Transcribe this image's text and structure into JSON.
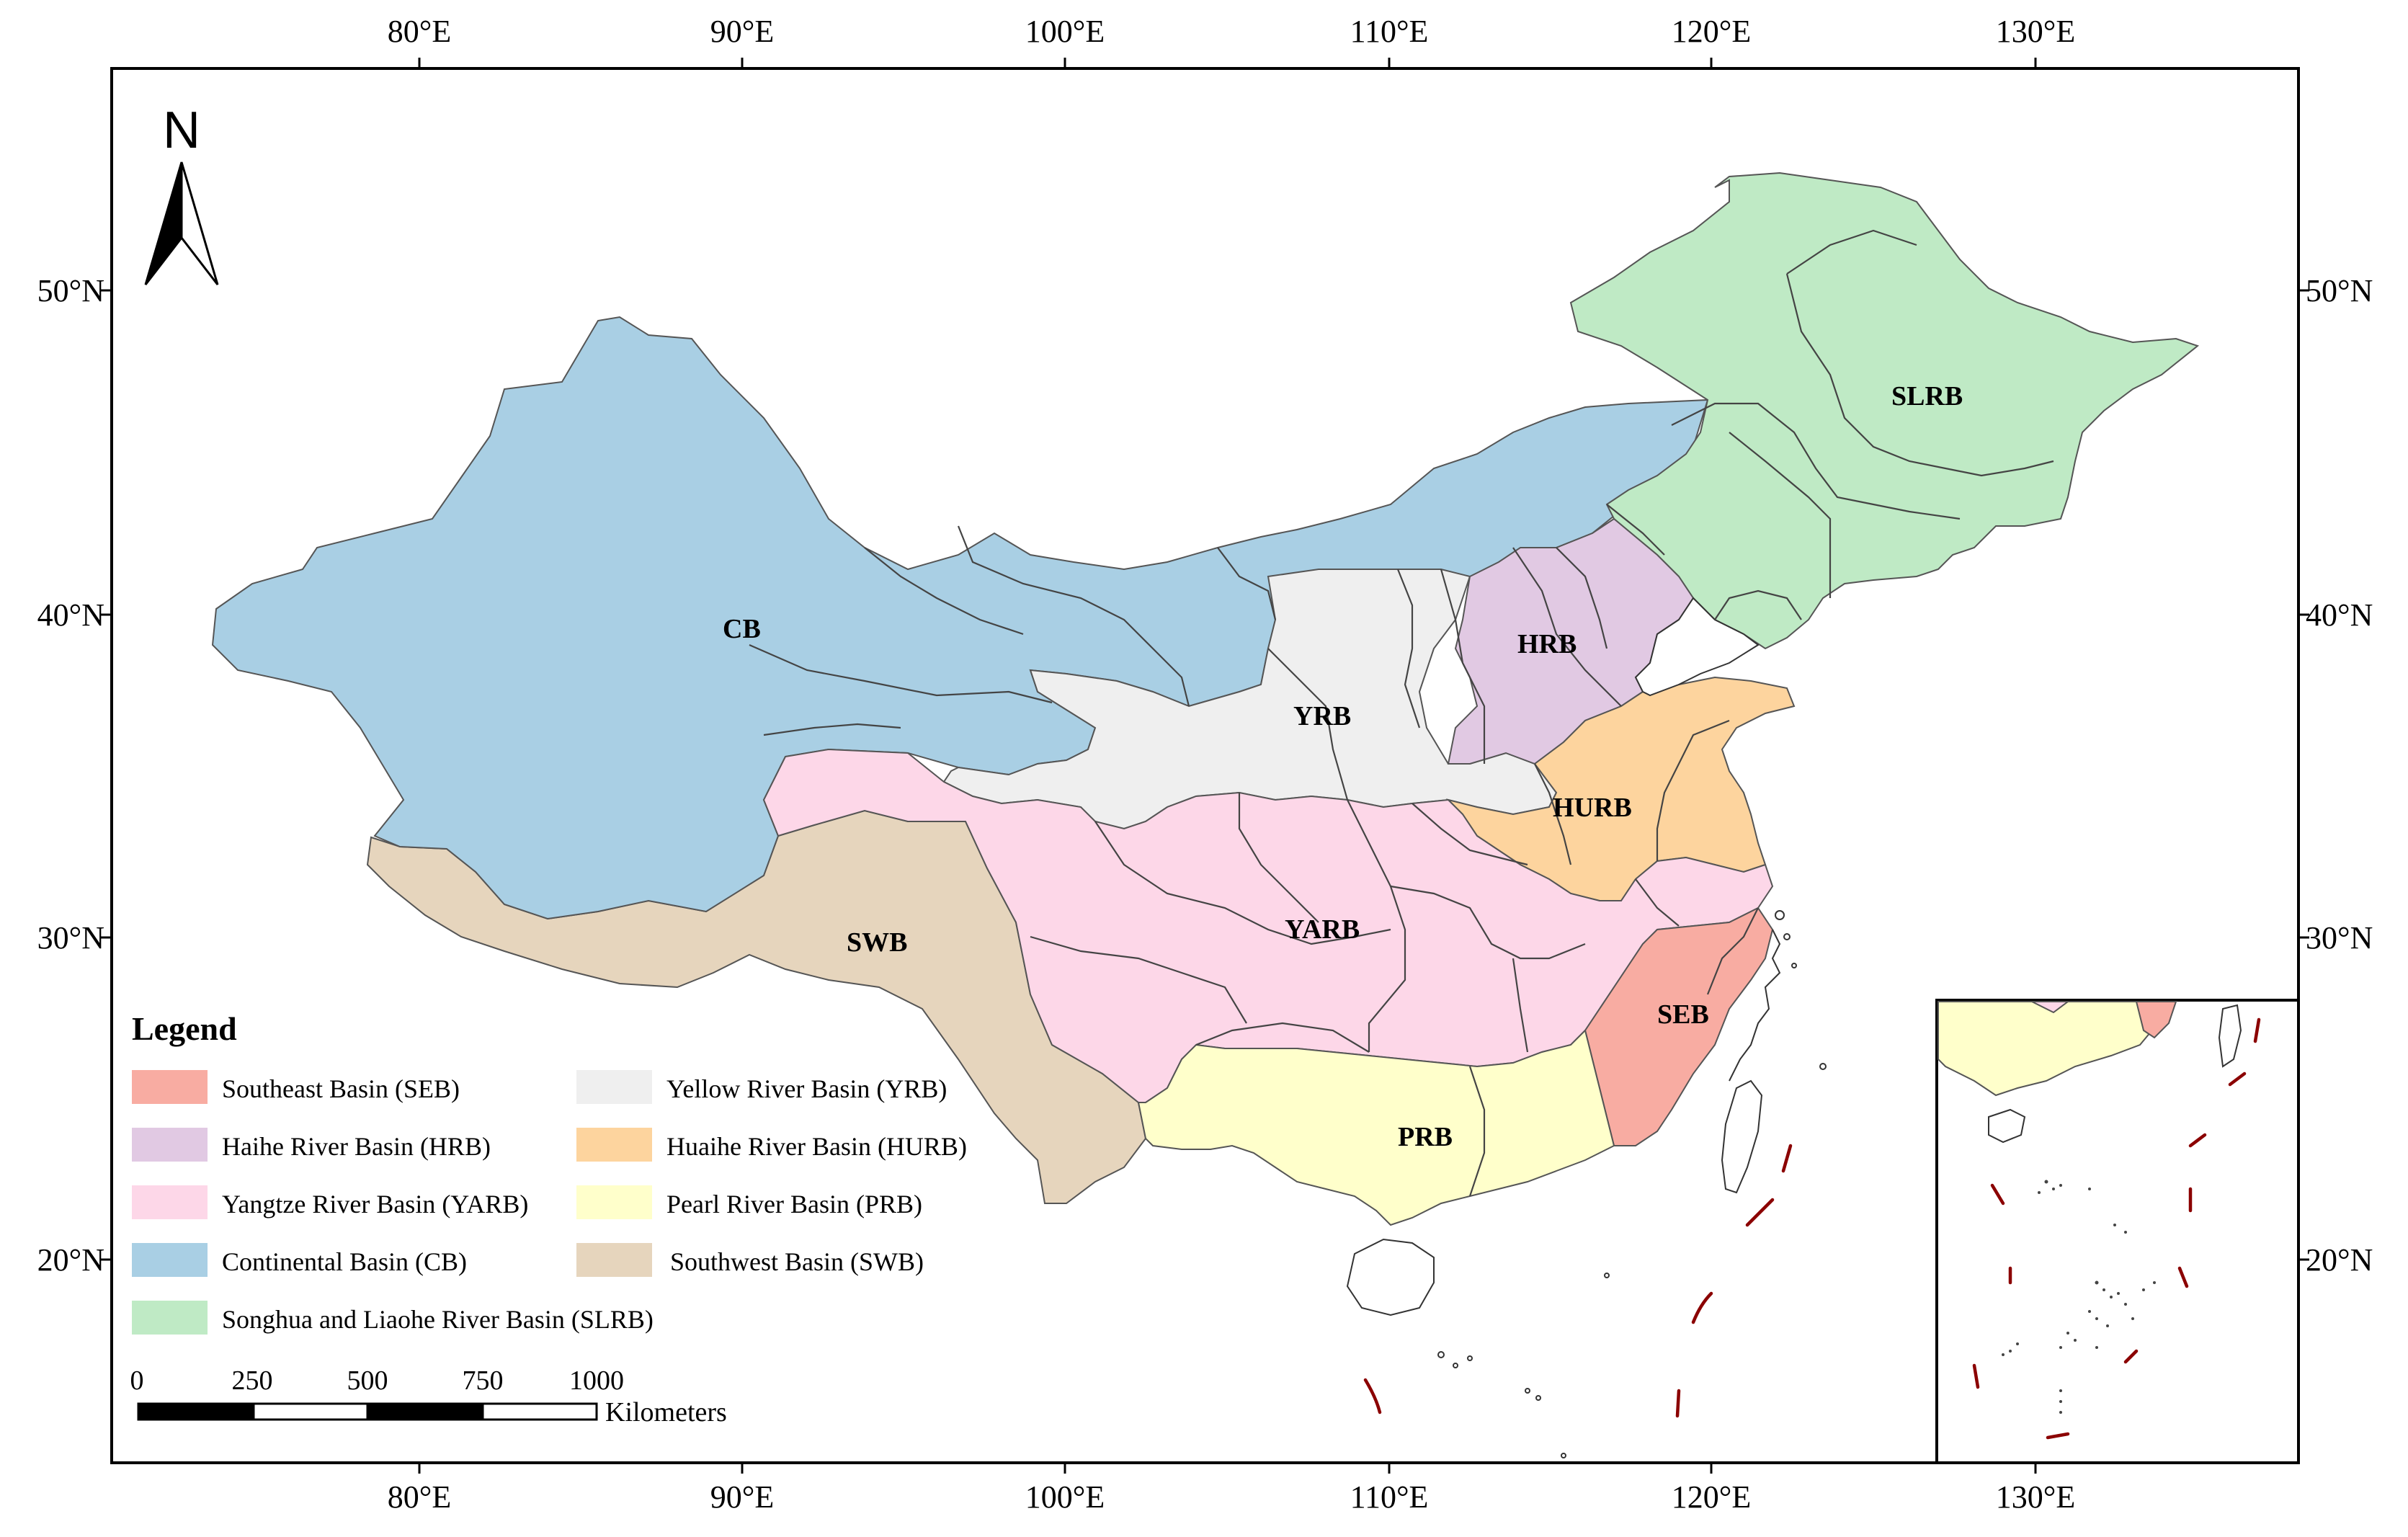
{
  "axes": {
    "top_lon_labels": [
      "80°E",
      "90°E",
      "100°E",
      "110°E",
      "120°E",
      "130°E"
    ],
    "bottom_lon_labels": [
      "80°E",
      "90°E",
      "100°E",
      "110°E",
      "120°E",
      "130°E"
    ],
    "left_lat_labels": [
      "50°N",
      "40°N",
      "30°N",
      "20°N"
    ],
    "right_lat_labels": [
      "50°N",
      "40°N",
      "30°N",
      "20°N"
    ]
  },
  "north_arrow": {
    "letter": "N"
  },
  "basins": [
    {
      "code": "CB",
      "label": "CB",
      "color": "#a9cfe4"
    },
    {
      "code": "SLRB",
      "label": "SLRB",
      "color": "#bfeac5"
    },
    {
      "code": "HRB",
      "label": "HRB",
      "color": "#e1c9e3"
    },
    {
      "code": "YRB",
      "label": "YRB",
      "color": "#efefef"
    },
    {
      "code": "HURB",
      "label": "HURB",
      "color": "#fdd49e"
    },
    {
      "code": "YARB",
      "label": "YARB",
      "color": "#fdd7e8"
    },
    {
      "code": "SWB",
      "label": "SWB",
      "color": "#e6d5bd"
    },
    {
      "code": "SEB",
      "label": "SEB",
      "color": "#f8aca2"
    },
    {
      "code": "PRB",
      "label": "PRB",
      "color": "#ffffcb"
    }
  ],
  "legend": {
    "title": "Legend",
    "items": [
      {
        "label": "Southeast Basin (SEB)",
        "color": "#f8aca2"
      },
      {
        "label": "Yellow River Basin (YRB)",
        "color": "#efefef"
      },
      {
        "label": "Haihe River Basin (HRB)",
        "color": "#e1c9e3"
      },
      {
        "label": "Huaihe River Basin (HURB)",
        "color": "#fdd49e"
      },
      {
        "label": "Yangtze River Basin (YARB)",
        "color": "#fdd7e8"
      },
      {
        "label": "Pearl River Basin (PRB)",
        "color": "#ffffcb"
      },
      {
        "label": "Continental Basin (CB)",
        "color": "#a9cfe4"
      },
      {
        "label": "Southwest Basin (SWB)",
        "color": "#e6d5bd"
      },
      {
        "label": "Songhua and Liaohe River Basin (SLRB)",
        "color": "#bfeac5"
      }
    ]
  },
  "scale_bar": {
    "ticks": [
      "0",
      "250",
      "500",
      "750",
      "1000"
    ],
    "unit": "Kilometers"
  },
  "colors": {
    "frame": "#000000",
    "boundary_dash": "#8b0000"
  }
}
